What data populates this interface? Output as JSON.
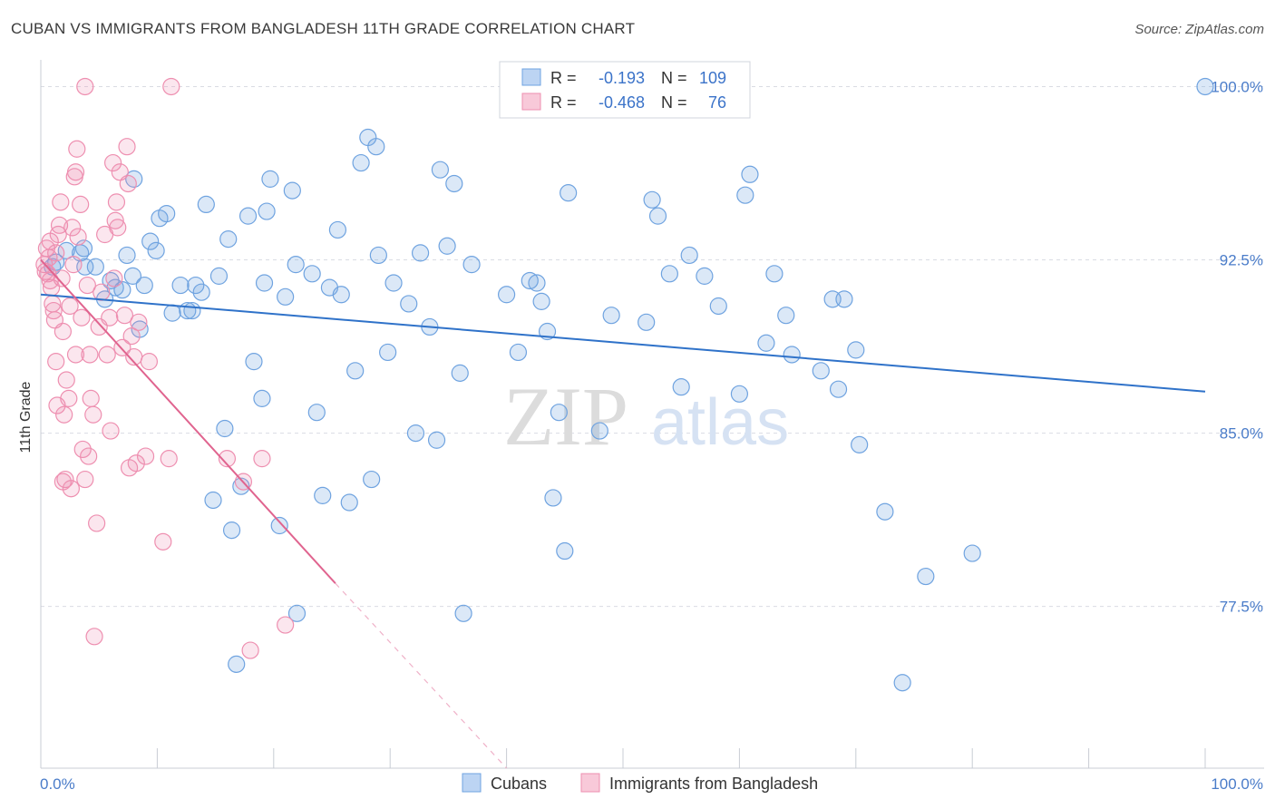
{
  "title": "CUBAN VS IMMIGRANTS FROM BANGLADESH 11TH GRADE CORRELATION CHART",
  "source": "Source: ZipAtlas.com",
  "watermark": {
    "zip": "ZIP",
    "atlas": "atlas"
  },
  "colors": {
    "blue": "#6fa3e0",
    "blue_line": "#2f72c9",
    "pink": "#ee8fb0",
    "pink_line": "#e0648f",
    "tick": "#4a7cc9",
    "grid": "#d9dce3"
  },
  "legend": {
    "r_label": "R =",
    "n_label": "N =",
    "rows": [
      {
        "r": "-0.193",
        "n": "109"
      },
      {
        "r": "-0.468",
        "n": "76"
      }
    ]
  },
  "chart_data": {
    "type": "scatter",
    "title": "CUBAN VS IMMIGRANTS FROM BANGLADESH 11TH GRADE CORRELATION CHART",
    "xlabel": "",
    "ylabel": "11th Grade",
    "xlim": [
      0,
      100
    ],
    "ylim": [
      70.5,
      101.0
    ],
    "x_tick_labels": [
      "0.0%",
      "100.0%"
    ],
    "y_ticks": [
      77.5,
      85.0,
      92.5,
      100.0
    ],
    "y_tick_labels": [
      "77.5%",
      "85.0%",
      "92.5%",
      "100.0%"
    ],
    "grid": true,
    "legend_position": "top-center",
    "series": [
      {
        "name": "Cubans",
        "color": "#6fa3e0",
        "trend": {
          "x": [
            0,
            100
          ],
          "y": [
            91.0,
            86.8
          ]
        },
        "points": [
          [
            1.0,
            92.2
          ],
          [
            1.3,
            92.4
          ],
          [
            2.2,
            92.9
          ],
          [
            3.4,
            92.8
          ],
          [
            3.7,
            93.0
          ],
          [
            3.8,
            92.2
          ],
          [
            4.7,
            92.2
          ],
          [
            5.5,
            90.8
          ],
          [
            6.0,
            91.6
          ],
          [
            6.4,
            91.3
          ],
          [
            7.0,
            91.2
          ],
          [
            7.4,
            92.7
          ],
          [
            7.9,
            91.8
          ],
          [
            8.5,
            89.5
          ],
          [
            8.9,
            91.4
          ],
          [
            9.4,
            93.3
          ],
          [
            9.9,
            92.9
          ],
          [
            10.2,
            94.3
          ],
          [
            10.8,
            94.5
          ],
          [
            11.3,
            90.2
          ],
          [
            12.0,
            91.4
          ],
          [
            12.6,
            90.3
          ],
          [
            13.0,
            90.3
          ],
          [
            13.3,
            91.4
          ],
          [
            13.8,
            91.1
          ],
          [
            14.2,
            94.9
          ],
          [
            14.8,
            82.1
          ],
          [
            15.3,
            91.8
          ],
          [
            15.8,
            85.2
          ],
          [
            16.4,
            80.8
          ],
          [
            16.8,
            75.0
          ],
          [
            17.2,
            82.7
          ],
          [
            17.8,
            94.4
          ],
          [
            18.3,
            88.1
          ],
          [
            19.0,
            86.5
          ],
          [
            19.4,
            94.6
          ],
          [
            19.7,
            96.0
          ],
          [
            20.5,
            81.0
          ],
          [
            21.0,
            90.9
          ],
          [
            21.6,
            95.5
          ],
          [
            21.9,
            92.3
          ],
          [
            22.0,
            77.2
          ],
          [
            23.3,
            91.9
          ],
          [
            23.7,
            85.9
          ],
          [
            24.2,
            82.3
          ],
          [
            24.8,
            91.3
          ],
          [
            25.5,
            93.8
          ],
          [
            25.8,
            91.0
          ],
          [
            26.5,
            82.0
          ],
          [
            27.0,
            87.7
          ],
          [
            27.5,
            96.7
          ],
          [
            28.1,
            97.8
          ],
          [
            28.4,
            83.0
          ],
          [
            28.8,
            97.4
          ],
          [
            29.0,
            92.7
          ],
          [
            29.8,
            88.5
          ],
          [
            30.3,
            91.5
          ],
          [
            31.6,
            90.6
          ],
          [
            32.2,
            85.0
          ],
          [
            32.6,
            92.8
          ],
          [
            33.4,
            89.6
          ],
          [
            34.0,
            84.7
          ],
          [
            34.3,
            96.4
          ],
          [
            34.9,
            93.1
          ],
          [
            35.5,
            95.8
          ],
          [
            36.0,
            87.6
          ],
          [
            37.0,
            92.3
          ],
          [
            40.0,
            91.0
          ],
          [
            41.0,
            88.5
          ],
          [
            42.0,
            91.6
          ],
          [
            42.6,
            91.5
          ],
          [
            43.0,
            90.7
          ],
          [
            43.5,
            89.4
          ],
          [
            44.0,
            82.2
          ],
          [
            44.5,
            85.9
          ],
          [
            45.0,
            79.9
          ],
          [
            45.3,
            95.4
          ],
          [
            48.0,
            85.1
          ],
          [
            49.0,
            90.1
          ],
          [
            52.0,
            89.8
          ],
          [
            52.5,
            95.1
          ],
          [
            53.0,
            94.4
          ],
          [
            55.0,
            87.0
          ],
          [
            54.0,
            91.9
          ],
          [
            55.7,
            92.7
          ],
          [
            57.0,
            91.8
          ],
          [
            58.2,
            90.5
          ],
          [
            60.0,
            86.7
          ],
          [
            60.5,
            95.3
          ],
          [
            60.9,
            96.2
          ],
          [
            62.3,
            88.9
          ],
          [
            63.0,
            91.9
          ],
          [
            64.0,
            90.1
          ],
          [
            64.5,
            88.4
          ],
          [
            67.0,
            87.7
          ],
          [
            68.0,
            90.8
          ],
          [
            68.5,
            86.9
          ],
          [
            69.0,
            90.8
          ],
          [
            70.0,
            88.6
          ],
          [
            70.3,
            84.5
          ],
          [
            72.5,
            81.6
          ],
          [
            74.0,
            74.2
          ],
          [
            76.0,
            78.8
          ],
          [
            80.0,
            79.8
          ],
          [
            100.0,
            100.0
          ],
          [
            36.3,
            77.2
          ],
          [
            19.2,
            91.5
          ],
          [
            16.1,
            93.4
          ],
          [
            8.0,
            96.0
          ]
        ]
      },
      {
        "name": "Immigrants from Bangladesh",
        "color": "#ee8fb0",
        "trend": {
          "x": [
            0,
            25.3
          ],
          "y": [
            92.5,
            78.5
          ]
        },
        "trend_dashed": {
          "x": [
            25.3,
            40.0
          ],
          "y": [
            78.5,
            70.5
          ]
        },
        "points": [
          [
            0.3,
            92.3
          ],
          [
            0.5,
            93.0
          ],
          [
            0.6,
            91.9
          ],
          [
            0.7,
            92.6
          ],
          [
            0.8,
            93.3
          ],
          [
            0.9,
            91.3
          ],
          [
            1.0,
            90.6
          ],
          [
            1.1,
            90.3
          ],
          [
            1.2,
            89.9
          ],
          [
            1.3,
            88.1
          ],
          [
            1.4,
            86.2
          ],
          [
            1.5,
            93.6
          ],
          [
            1.6,
            94.0
          ],
          [
            1.7,
            95.0
          ],
          [
            1.8,
            91.7
          ],
          [
            1.9,
            89.4
          ],
          [
            2.0,
            85.8
          ],
          [
            2.1,
            83.0
          ],
          [
            2.2,
            87.3
          ],
          [
            2.4,
            86.5
          ],
          [
            2.6,
            82.6
          ],
          [
            2.7,
            93.9
          ],
          [
            2.9,
            96.1
          ],
          [
            3.0,
            96.3
          ],
          [
            3.1,
            97.3
          ],
          [
            3.2,
            93.5
          ],
          [
            3.4,
            94.9
          ],
          [
            3.5,
            90.0
          ],
          [
            3.6,
            84.3
          ],
          [
            3.8,
            83.0
          ],
          [
            4.0,
            91.4
          ],
          [
            4.2,
            88.4
          ],
          [
            4.3,
            86.5
          ],
          [
            4.5,
            85.8
          ],
          [
            4.8,
            81.1
          ],
          [
            5.0,
            89.6
          ],
          [
            5.2,
            91.1
          ],
          [
            5.5,
            93.6
          ],
          [
            5.7,
            88.4
          ],
          [
            5.9,
            90.0
          ],
          [
            6.0,
            85.1
          ],
          [
            6.2,
            96.7
          ],
          [
            6.4,
            94.2
          ],
          [
            6.5,
            95.0
          ],
          [
            6.6,
            93.9
          ],
          [
            6.8,
            96.3
          ],
          [
            7.0,
            88.7
          ],
          [
            7.2,
            90.1
          ],
          [
            7.4,
            97.4
          ],
          [
            7.5,
            95.8
          ],
          [
            7.6,
            83.5
          ],
          [
            7.8,
            89.2
          ],
          [
            8.0,
            88.3
          ],
          [
            8.2,
            83.7
          ],
          [
            8.4,
            89.8
          ],
          [
            9.0,
            84.0
          ],
          [
            9.3,
            88.1
          ],
          [
            10.5,
            80.3
          ],
          [
            11.0,
            83.9
          ],
          [
            16.0,
            83.9
          ],
          [
            17.4,
            82.9
          ],
          [
            18.0,
            75.6
          ],
          [
            19.0,
            83.9
          ],
          [
            21.0,
            76.7
          ],
          [
            11.2,
            100.0
          ],
          [
            3.8,
            100.0
          ],
          [
            0.4,
            92.0
          ],
          [
            0.8,
            91.6
          ],
          [
            1.3,
            92.8
          ],
          [
            2.8,
            92.3
          ],
          [
            4.1,
            84.0
          ],
          [
            1.9,
            82.9
          ],
          [
            2.5,
            90.5
          ],
          [
            6.3,
            91.7
          ],
          [
            4.6,
            76.2
          ],
          [
            3.0,
            88.4
          ]
        ]
      }
    ]
  }
}
